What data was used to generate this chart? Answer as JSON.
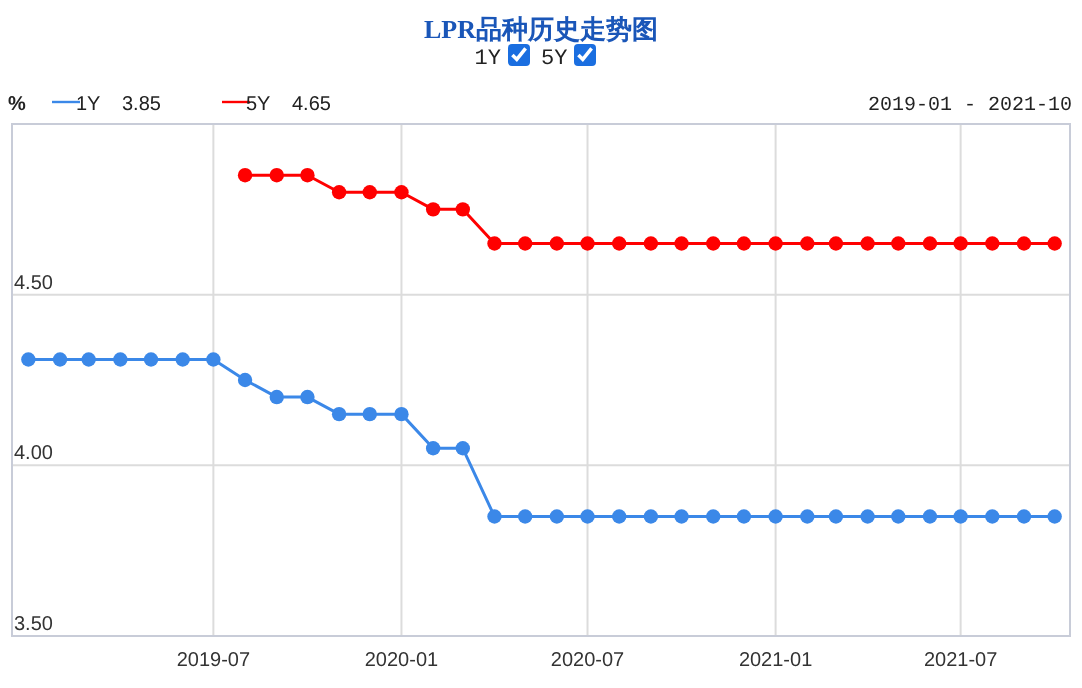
{
  "chart_data": {
    "type": "line",
    "title": "LPR品种历史走势图",
    "ylabel": "%",
    "x": [
      "2019-01",
      "2019-02",
      "2019-03",
      "2019-04",
      "2019-05",
      "2019-06",
      "2019-07",
      "2019-08",
      "2019-09",
      "2019-10",
      "2019-11",
      "2019-12",
      "2020-01",
      "2020-02",
      "2020-03",
      "2020-04",
      "2020-05",
      "2020-06",
      "2020-07",
      "2020-08",
      "2020-09",
      "2020-10",
      "2020-11",
      "2020-12",
      "2021-01",
      "2021-02",
      "2021-03",
      "2021-04",
      "2021-05",
      "2021-06",
      "2021-07",
      "2021-08",
      "2021-09",
      "2021-10"
    ],
    "series": [
      {
        "name": "1Y",
        "color": "#3b88e8",
        "values": [
          4.31,
          4.31,
          4.31,
          4.31,
          4.31,
          4.31,
          4.31,
          4.25,
          4.2,
          4.2,
          4.15,
          4.15,
          4.15,
          4.05,
          4.05,
          3.85,
          3.85,
          3.85,
          3.85,
          3.85,
          3.85,
          3.85,
          3.85,
          3.85,
          3.85,
          3.85,
          3.85,
          3.85,
          3.85,
          3.85,
          3.85,
          3.85,
          3.85,
          3.85
        ]
      },
      {
        "name": "5Y",
        "color": "#ff0000",
        "values": [
          null,
          null,
          null,
          null,
          null,
          null,
          null,
          4.85,
          4.85,
          4.85,
          4.8,
          4.8,
          4.8,
          4.75,
          4.75,
          4.65,
          4.65,
          4.65,
          4.65,
          4.65,
          4.65,
          4.65,
          4.65,
          4.65,
          4.65,
          4.65,
          4.65,
          4.65,
          4.65,
          4.65,
          4.65,
          4.65,
          4.65,
          4.65
        ]
      }
    ],
    "annotations": [
      "3.85",
      "4.65",
      "2019-01 - 2021-10"
    ],
    "xlim": [
      "2018-12-16",
      "2021-10-16"
    ],
    "xticks": [
      "2019-07",
      "2020-01",
      "2020-07",
      "2021-01",
      "2021-07"
    ],
    "ylim": [
      3.5,
      5.0
    ],
    "yticks": [
      {
        "value": 3.5,
        "label": "3.50"
      },
      {
        "value": 4.0,
        "label": "4.00"
      },
      {
        "value": 4.5,
        "label": "4.50"
      },
      {
        "value": 5.0,
        "label": null
      }
    ],
    "grid": true,
    "legend": "top left",
    "marker": "circle",
    "line_style": "solid"
  }
}
